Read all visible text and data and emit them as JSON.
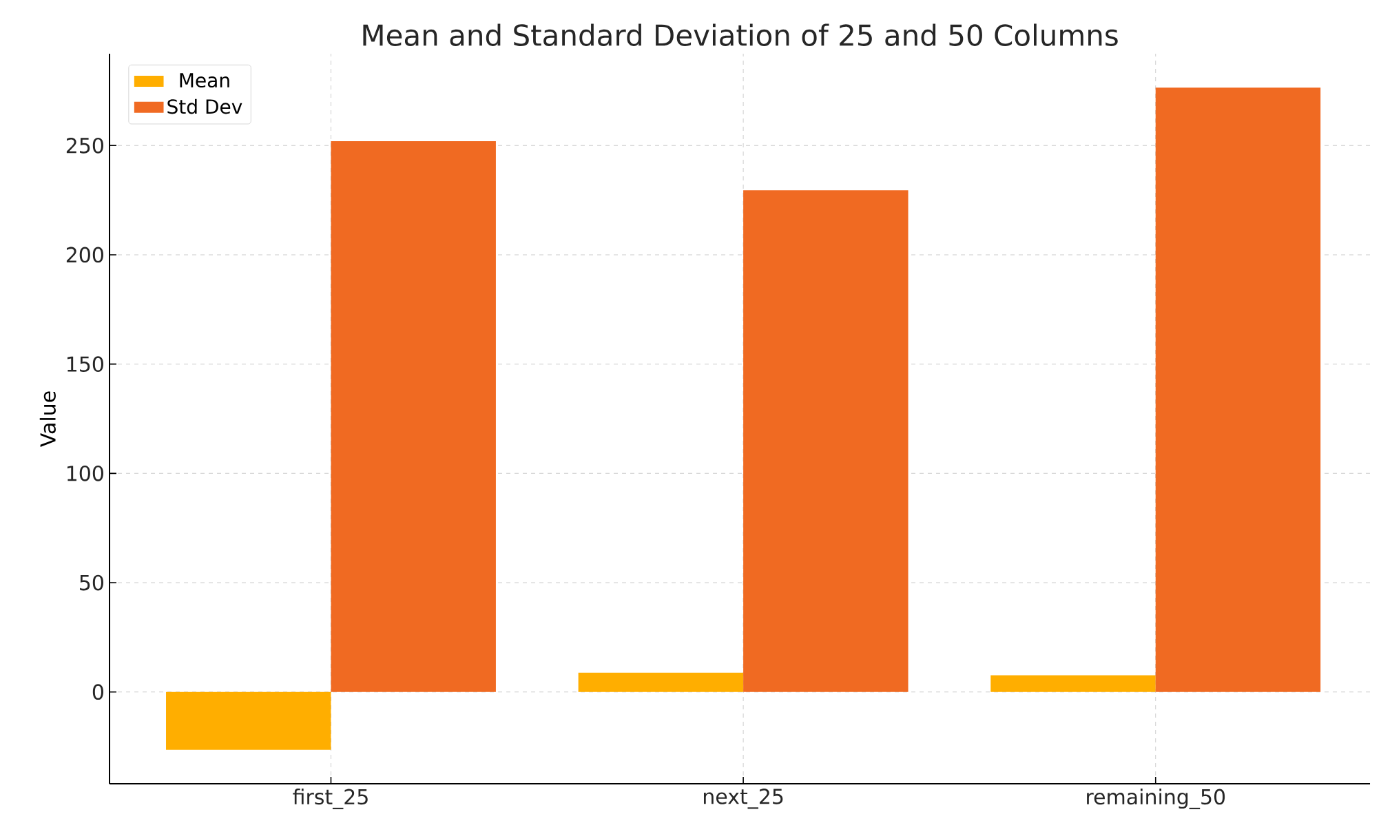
{
  "chart_data": {
    "type": "bar",
    "title": "Mean and Standard Deviation of 25 and 50 Columns",
    "ylabel": "Value",
    "categories": [
      "first_25",
      "next_25",
      "remaining_50"
    ],
    "series": [
      {
        "name": "Mean",
        "color": "#ffae00",
        "values": [
          -26.5,
          8.8,
          7.6
        ]
      },
      {
        "name": "Std Dev",
        "color": "#f06a22",
        "values": [
          252,
          229.5,
          276.5
        ]
      }
    ],
    "ylim": [
      -42,
      292
    ],
    "yticks": [
      0,
      50,
      100,
      150,
      200,
      250
    ],
    "grid": true,
    "legend": "top left"
  }
}
